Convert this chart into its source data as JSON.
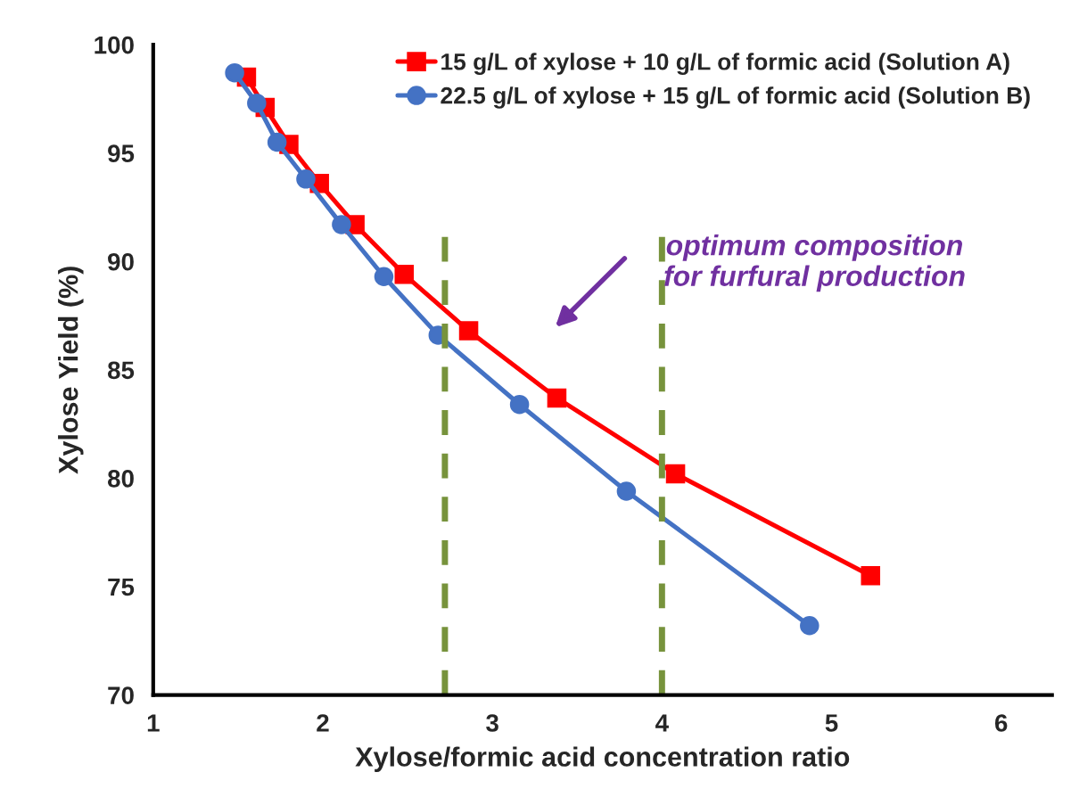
{
  "chart_data": {
    "type": "line",
    "xlabel": "Xylose/formic acid concentration ratio",
    "ylabel": "Xylose Yield (%)",
    "xlim": [
      1,
      6.3
    ],
    "xticks": [
      1,
      2,
      3,
      4,
      5,
      6
    ],
    "ylim": [
      70,
      100
    ],
    "yticks": [
      70,
      75,
      80,
      85,
      90,
      95,
      100
    ],
    "grid": false,
    "legend": "top right",
    "series": [
      {
        "name": "15 g/L of xylose + 10 g/L of formic acid (Solution A)",
        "color": "#ff0000",
        "marker": "square",
        "x": [
          1.55,
          1.66,
          1.8,
          1.98,
          2.19,
          2.48,
          2.86,
          3.38,
          4.08,
          5.23
        ],
        "values": [
          98.5,
          97.1,
          95.4,
          93.6,
          91.7,
          89.4,
          86.8,
          83.7,
          80.2,
          75.5
        ]
      },
      {
        "name": "22.5 g/L of xylose + 15 g/L of formic acid (Solution B)",
        "color": "#4472c4",
        "marker": "circle",
        "x": [
          1.48,
          1.61,
          1.73,
          1.9,
          2.11,
          2.36,
          2.68,
          3.16,
          3.79,
          4.87
        ],
        "values": [
          98.7,
          97.3,
          95.5,
          93.8,
          91.7,
          89.3,
          86.6,
          83.4,
          79.4,
          73.2
        ]
      }
    ],
    "ref_lines": [
      {
        "axis": "x",
        "value": 2.72,
        "color": "#77933c",
        "line_style": "dashed"
      },
      {
        "axis": "x",
        "value": 4.0,
        "color": "#77933c",
        "line_style": "dashed"
      }
    ],
    "annotations": [
      "optimum composition\nfor furfural production"
    ]
  }
}
